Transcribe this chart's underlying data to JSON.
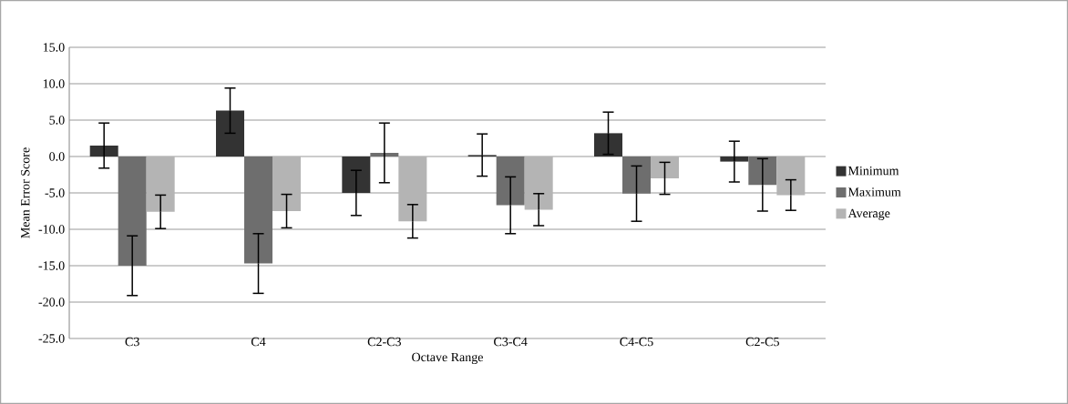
{
  "chart_data": {
    "type": "bar",
    "xlabel": "Octave Range",
    "ylabel": "Mean Error Score",
    "categories": [
      "C3",
      "C4",
      "C2-C3",
      "C3-C4",
      "C4-C5",
      "C2-C5"
    ],
    "series": [
      {
        "name": "Minimum",
        "color": "#333333",
        "values": [
          1.5,
          6.3,
          -5.0,
          0.2,
          3.2,
          -0.7
        ],
        "errors": [
          3.1,
          3.1,
          3.1,
          2.9,
          2.9,
          2.8
        ]
      },
      {
        "name": "Maximum",
        "color": "#6e6e6e",
        "values": [
          -15.0,
          -14.7,
          0.5,
          -6.7,
          -5.1,
          -3.9
        ],
        "errors": [
          4.1,
          4.1,
          4.1,
          3.9,
          3.8,
          3.6
        ]
      },
      {
        "name": "Average",
        "color": "#b4b4b4",
        "values": [
          -7.6,
          -7.5,
          -8.9,
          -7.3,
          -3.0,
          -5.3
        ],
        "errors": [
          2.3,
          2.3,
          2.3,
          2.2,
          2.2,
          2.1
        ]
      }
    ],
    "ylim": [
      -25,
      15
    ],
    "yticks": [
      {
        "value": -25,
        "label": "-25.0"
      },
      {
        "value": -20,
        "label": "-20.0"
      },
      {
        "value": -15,
        "label": "-15.0"
      },
      {
        "value": -10,
        "label": "-10.0"
      },
      {
        "value": -5,
        "label": "-5.0"
      },
      {
        "value": 0,
        "label": "0.0"
      },
      {
        "value": 5,
        "label": "5.0"
      },
      {
        "value": 10,
        "label": "10.0"
      },
      {
        "value": 15,
        "label": "15.0"
      }
    ],
    "grid": "y",
    "legend": "right"
  }
}
